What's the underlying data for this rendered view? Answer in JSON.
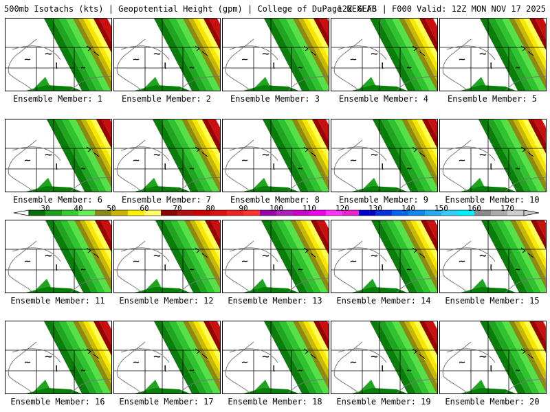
{
  "header": {
    "left": "500mb Isotachs (kts) | Geopotential Height (gpm) | College of DuPage NEXLAB",
    "right": "12Z GEFS | F000 Valid: 12Z MON NOV 17 2025"
  },
  "members": [
    "Ensemble Member: 1",
    "Ensemble Member: 2",
    "Ensemble Member: 3",
    "Ensemble Member: 4",
    "Ensemble Member: 5",
    "Ensemble Member: 6",
    "Ensemble Member: 7",
    "Ensemble Member: 8",
    "Ensemble Member: 9",
    "Ensemble Member: 10",
    "Ensemble Member: 11",
    "Ensemble Member: 12",
    "Ensemble Member: 13",
    "Ensemble Member: 14",
    "Ensemble Member: 15",
    "Ensemble Member: 16",
    "Ensemble Member: 17",
    "Ensemble Member: 18",
    "Ensemble Member: 19",
    "Ensemble Member: 20"
  ],
  "colorbar": {
    "labels": [
      "30",
      "40",
      "50",
      "60",
      "70",
      "80",
      "90",
      "100",
      "110",
      "120",
      "130",
      "140",
      "150",
      "160",
      "170"
    ],
    "values": [
      30,
      40,
      50,
      60,
      70,
      80,
      90,
      100,
      110,
      120,
      130,
      140,
      150,
      160,
      170
    ],
    "colors": [
      "#0a6e0a",
      "#1e9e1e",
      "#33cc33",
      "#66ee55",
      "#8b8b1a",
      "#c8b400",
      "#ffee00",
      "#ffff66",
      "#8b0000",
      "#b01010",
      "#cc0000",
      "#dd1111",
      "#ee2222",
      "#ff3030",
      "#9900aa",
      "#aa22bb",
      "#cc00cc",
      "#ee00ee",
      "#ff33ff",
      "#ee22cc",
      "#0000cc",
      "#0033dd",
      "#0066ee",
      "#1188ee",
      "#22aaee",
      "#33ccff",
      "#00eeff",
      "#888888",
      "#aaaaaa",
      "#cccccc"
    ]
  },
  "jet_colors": [
    "#0a7e0a",
    "#1fa51f",
    "#2fc42f",
    "#58e048",
    "#8e8a10",
    "#c8b800",
    "#f6e800",
    "#ffff55",
    "#9a0000",
    "#c81010"
  ],
  "colors": {
    "border": "#000000",
    "coast": "#777777",
    "state": "#000000"
  }
}
